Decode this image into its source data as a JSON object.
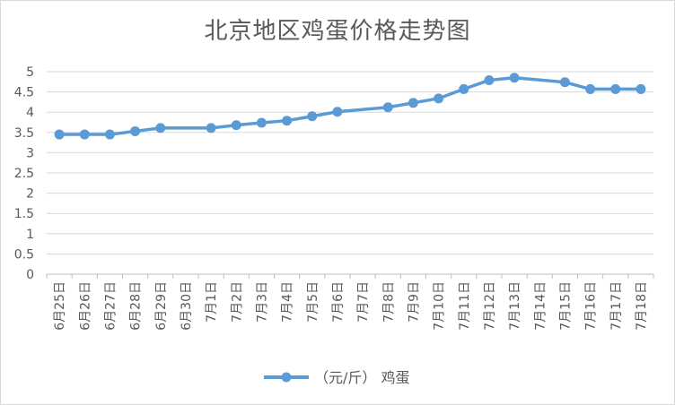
{
  "chart_data": {
    "type": "line",
    "title": "北京地区鸡蛋价格走势图",
    "xlabel": "",
    "ylabel": "",
    "ylim": [
      0,
      5
    ],
    "yticks": [
      "0",
      "0.5",
      "1",
      "1.5",
      "2",
      "2.5",
      "3",
      "3.5",
      "4",
      "4.5",
      "5"
    ],
    "categories": [
      "6月25日",
      "6月26日",
      "6月27日",
      "6月28日",
      "6月29日",
      "6月30日",
      "7月1日",
      "7月2日",
      "7月3日",
      "7月4日",
      "7月5日",
      "7月6日",
      "7月7日",
      "7月8日",
      "7月9日",
      "7月10日",
      "7月11日",
      "7月12日",
      "7月13日",
      "7月14日",
      "7月15日",
      "7月16日",
      "7月17日",
      "7月18日"
    ],
    "series": [
      {
        "name": "（元/斤） 鸡蛋",
        "color": "#5b9bd5",
        "points": [
          {
            "x": "6月25日",
            "y": 3.45
          },
          {
            "x": "6月26日",
            "y": 3.45
          },
          {
            "x": "6月27日",
            "y": 3.45
          },
          {
            "x": "6月28日",
            "y": 3.53
          },
          {
            "x": "6月29日",
            "y": 3.61
          },
          {
            "x": "7月1日",
            "y": 3.61
          },
          {
            "x": "7月2日",
            "y": 3.68
          },
          {
            "x": "7月3日",
            "y": 3.74
          },
          {
            "x": "7月4日",
            "y": 3.79
          },
          {
            "x": "7月5日",
            "y": 3.9
          },
          {
            "x": "7月6日",
            "y": 4.01
          },
          {
            "x": "7月8日",
            "y": 4.12
          },
          {
            "x": "7月9日",
            "y": 4.23
          },
          {
            "x": "7月10日",
            "y": 4.34
          },
          {
            "x": "7月11日",
            "y": 4.57
          },
          {
            "x": "7月12日",
            "y": 4.79
          },
          {
            "x": "7月13日",
            "y": 4.85
          },
          {
            "x": "7月15日",
            "y": 4.74
          },
          {
            "x": "7月16日",
            "y": 4.57
          },
          {
            "x": "7月17日",
            "y": 4.57
          },
          {
            "x": "7月18日",
            "y": 4.57
          }
        ]
      }
    ],
    "grid": true,
    "legend": "bottom"
  }
}
